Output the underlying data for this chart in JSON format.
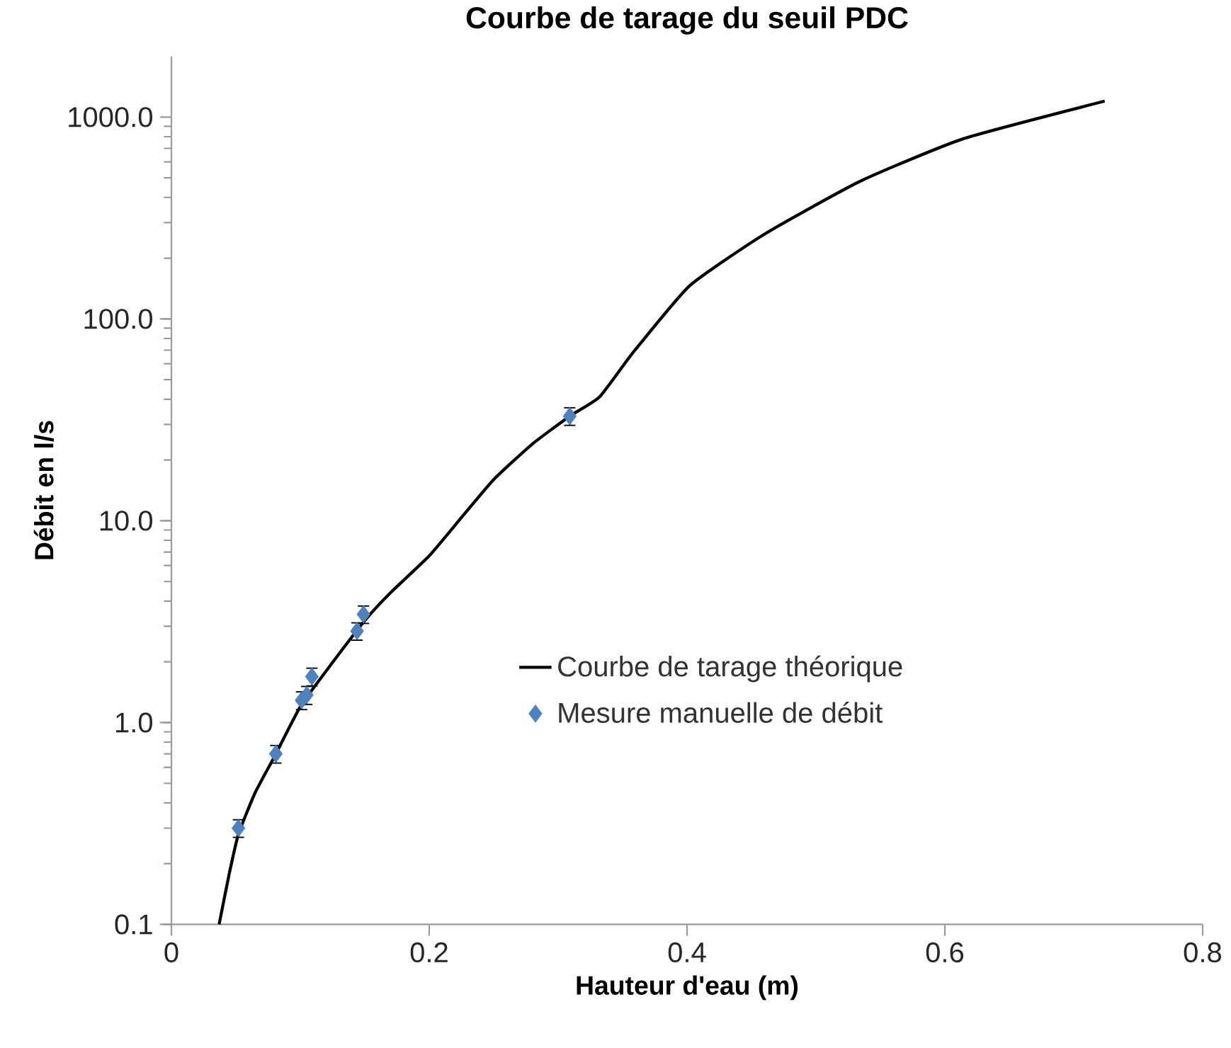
{
  "chart_data": {
    "type": "scatter",
    "title": "Courbe de tarage du seuil PDC",
    "xlabel": "Hauteur d'eau (m)",
    "ylabel": "Débit en l/s",
    "log": "y",
    "xlim": [
      0,
      0.8
    ],
    "xticks": [
      0,
      0.2,
      0.4,
      0.6,
      0.8
    ],
    "ylim": [
      0.1,
      2000
    ],
    "yticks": [
      {
        "value": 0.1,
        "label": "0.1"
      },
      {
        "value": 1,
        "label": "1.0"
      },
      {
        "value": 10,
        "label": "10.0"
      },
      {
        "value": 100,
        "label": "100.0"
      },
      {
        "value": 1000,
        "label": "1000.0"
      }
    ],
    "grid": false,
    "legend": "right",
    "series": [
      {
        "name": "Courbe de tarage théorique",
        "type": "line",
        "color": "#000000",
        "marker": "none",
        "line_style": "solid",
        "x": [
          0.037,
          0.045,
          0.052,
          0.065,
          0.08,
          0.1,
          0.12,
          0.15,
          0.17,
          0.2,
          0.22,
          0.25,
          0.28,
          0.309,
          0.332,
          0.358,
          0.402,
          0.46,
          0.534,
          0.614,
          0.724
        ],
        "values": [
          0.1,
          0.18,
          0.28,
          0.45,
          0.68,
          1.2,
          1.8,
          3.2,
          4.4,
          6.7,
          9.5,
          16,
          24,
          33,
          41,
          68,
          146,
          263,
          480,
          780,
          1200
        ]
      },
      {
        "name": "Mesure manuelle de débit",
        "color": "#4f81bd",
        "marker": "diamond",
        "x": [
          0.052,
          0.081,
          0.101,
          0.105,
          0.109,
          0.144,
          0.149,
          0.309
        ],
        "values": [
          0.3,
          0.7,
          1.29,
          1.37,
          1.69,
          2.84,
          3.44,
          33
        ],
        "errors": [
          0.03,
          0.07,
          0.13,
          0.14,
          0.17,
          0.28,
          0.34,
          3.3
        ]
      }
    ]
  }
}
